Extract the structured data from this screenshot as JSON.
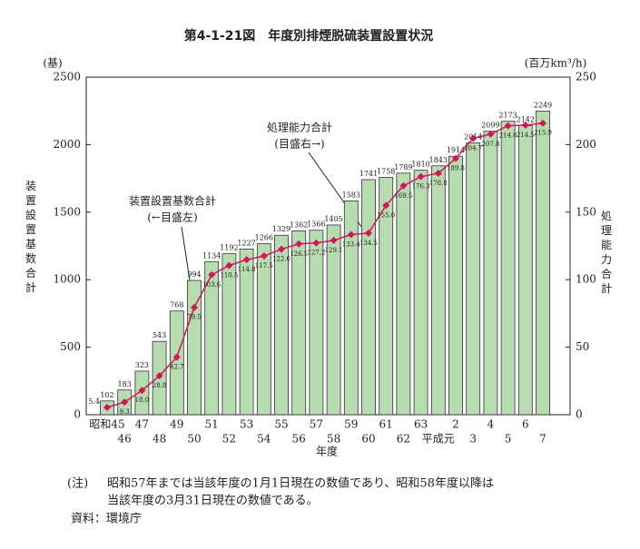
{
  "chart_data": {
    "type": "bar_line",
    "title": "第4-1-21図　年度別排煙脱硫装置設置状況",
    "y_unit": "(基)",
    "y2_unit": "(百万km³/h)",
    "y_label": "装置設置基数合計",
    "y2_label": "処理能力合計",
    "x_label": "年度",
    "annotations": [
      "装置設置基数合計",
      "(←目盛左)",
      "処理能力合計",
      "(目盛右→)"
    ],
    "notes": [
      "(注)",
      "昭和57年までは当該年度の1月1日現在の数値であり、昭和58年度以降は",
      "当該年度の3月31日現在の数値である。",
      "資料：環境庁"
    ],
    "categories": [
      "昭和45",
      "46",
      "47",
      "48",
      "49",
      "50",
      "51",
      "52",
      "53",
      "54",
      "55",
      "56",
      "57",
      "58",
      "59",
      "60",
      "61",
      "62",
      "63",
      "平成元",
      "2",
      "3",
      "4",
      "5",
      "6",
      "7"
    ],
    "series": [
      {
        "name": "装置設置基数合計",
        "type": "bar",
        "color": "#b7dcb0",
        "values": [
          102,
          183,
          323,
          543,
          768,
          994,
          1134,
          1192,
          1227,
          1266,
          1329,
          1362,
          1366,
          1405,
          1583,
          1741,
          1758,
          1789,
          1810,
          1843,
          1914,
          2014,
          2099,
          2173,
          2142,
          2249
        ]
      },
      {
        "name": "処理能力合計",
        "type": "line",
        "axis": "y2",
        "color": "#d4145a",
        "values": [
          5.4,
          9.3,
          18,
          28.8,
          42.7,
          79.5,
          103.6,
          110.5,
          114.8,
          117.5,
          122.6,
          126.5,
          127.2,
          129.1,
          133.4,
          134.5,
          155,
          169.5,
          176.3,
          178.8,
          189.8,
          204.7,
          207.8,
          214,
          214.5,
          215.9
        ],
        "value_labels": [
          "5.4",
          "9.3",
          "18.0",
          "28.8",
          "42.7",
          "79.5",
          "103.6",
          "110.5",
          "114.8",
          "117.5",
          "122.6",
          "126.5",
          "127.2",
          "129.1",
          "133.4",
          "134.5",
          "155.0",
          "169.5",
          "176.3",
          "178.8",
          "189.8",
          "204.7",
          "207.8",
          "214.0",
          "214.5",
          "215.9"
        ]
      }
    ],
    "ylim": [
      0,
      2500
    ],
    "yticks": [
      0,
      500,
      1000,
      1500,
      2000,
      2500
    ],
    "y2lim": [
      0,
      250
    ],
    "y2ticks": [
      0,
      50,
      100,
      150,
      200,
      250
    ]
  }
}
